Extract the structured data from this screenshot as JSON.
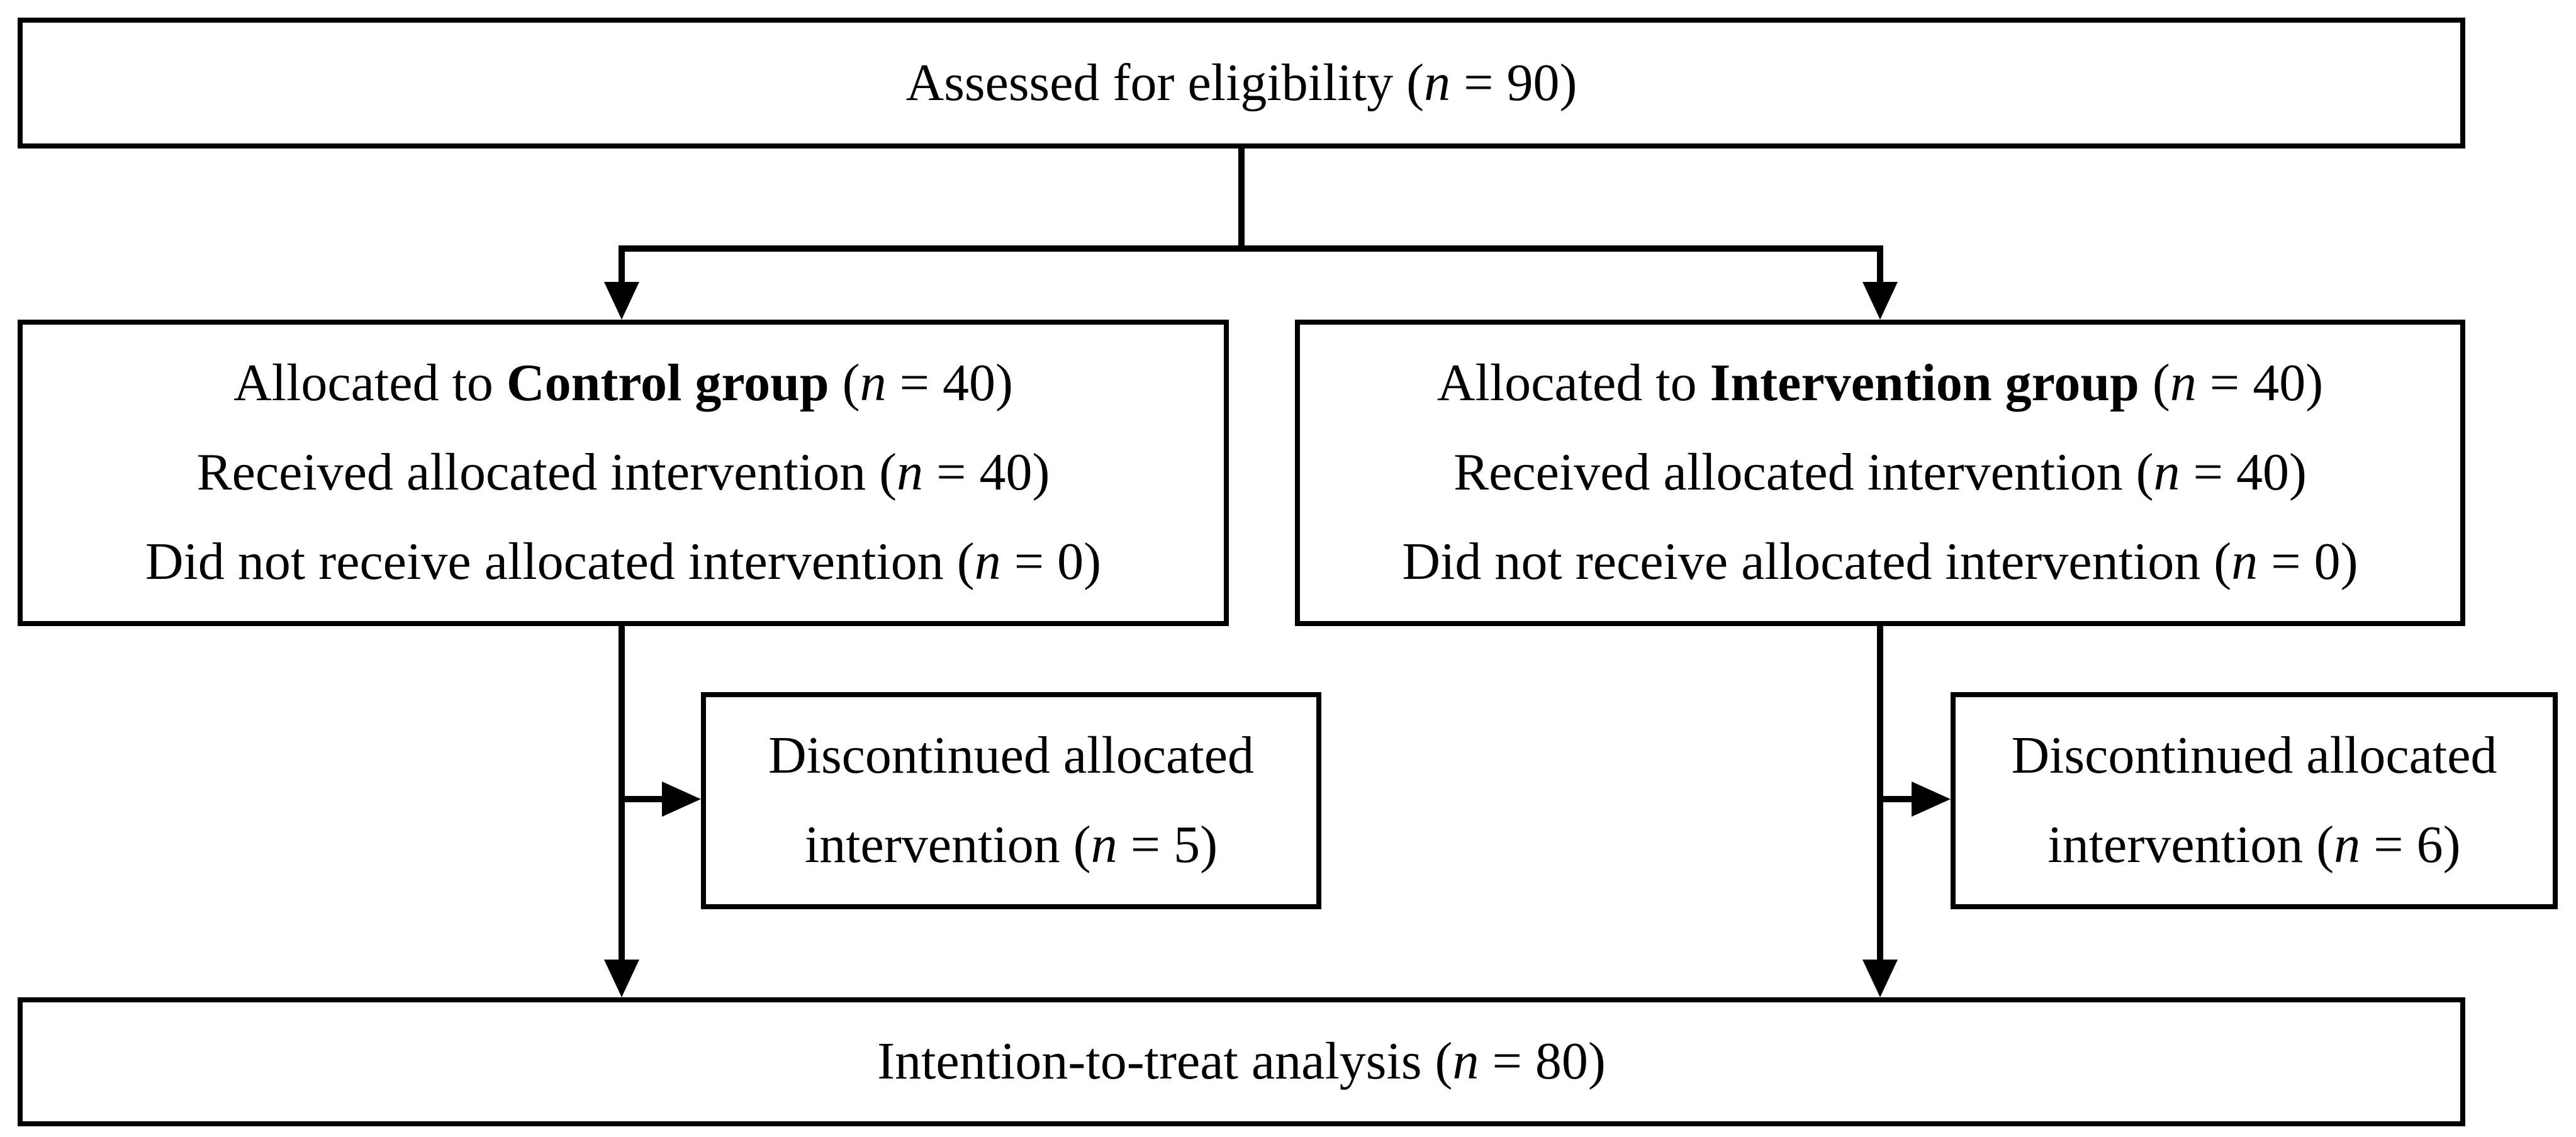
{
  "colors": {
    "border": "#000000",
    "text": "#000000",
    "background": "#ffffff"
  },
  "assessed": {
    "pre": "Assessed for eligibility (",
    "n": "n",
    "post": " = 90)"
  },
  "control": {
    "line1": {
      "pre": "Allocated to ",
      "bold": "Control group",
      "mid": " (",
      "n": "n",
      "post": " = 40)"
    },
    "line2": {
      "pre": "Received allocated intervention (",
      "n": "n",
      "post": " = 40)"
    },
    "line3": {
      "pre": "Did not receive allocated intervention (",
      "n": "n",
      "post": " = 0)"
    }
  },
  "intervention": {
    "line1": {
      "pre": "Allocated to ",
      "bold": "Intervention group",
      "mid": " (",
      "n": "n",
      "post": " = 40)"
    },
    "line2": {
      "pre": "Received allocated intervention (",
      "n": "n",
      "post": " = 40)"
    },
    "line3": {
      "pre": "Did not receive allocated intervention (",
      "n": "n",
      "post": " = 0)"
    }
  },
  "control_discontinued": {
    "line1": "Discontinued allocated",
    "line2": {
      "pre": "intervention (",
      "n": "n",
      "post": " = 5)"
    }
  },
  "intervention_discontinued": {
    "line1": "Discontinued allocated",
    "line2": {
      "pre": "intervention (",
      "n": "n",
      "post": " = 6)"
    }
  },
  "itt": {
    "pre": "Intention-to-treat analysis (",
    "n": "n",
    "post": " = 80)"
  }
}
